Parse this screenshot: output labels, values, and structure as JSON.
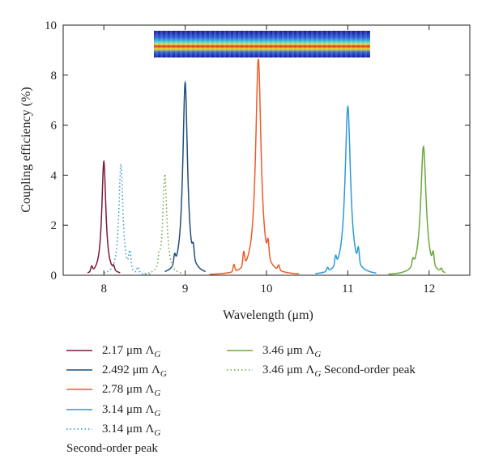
{
  "chart_data": {
    "type": "line",
    "xlabel": "Wavelength (μm)",
    "ylabel": "Coupling efficiency (%)",
    "xlim": [
      7.5,
      12.5
    ],
    "ylim": [
      0,
      10
    ],
    "xticks": [
      8,
      9,
      10,
      11,
      12
    ],
    "yticks": [
      0,
      2,
      4,
      6,
      8,
      10
    ],
    "series": [
      {
        "name": "2.17 μm Λ_G",
        "label_main": "2.17 μm Λ",
        "label_sub": "G",
        "color": "#7b1a3a",
        "style": "solid",
        "peak": 8.0,
        "height": 4.55,
        "width": 0.03,
        "range": [
          7.8,
          8.2
        ],
        "side": [
          [
            7.85,
            0.2,
            0.015
          ],
          [
            8.12,
            0.15,
            0.015
          ]
        ]
      },
      {
        "name": "2.492 μm Λ_G",
        "label_main": "2.492 μm Λ",
        "label_sub": "G",
        "color": "#1f4e79",
        "style": "solid",
        "peak": 9.0,
        "height": 7.7,
        "width": 0.035,
        "range": [
          8.75,
          9.25
        ],
        "side": [
          [
            8.87,
            0.35,
            0.015
          ],
          [
            9.1,
            0.45,
            0.015
          ]
        ]
      },
      {
        "name": "2.78 μm Λ_G",
        "label_main": "2.78 μm Λ",
        "label_sub": "G",
        "color": "#f05a28",
        "style": "solid",
        "peak": 9.9,
        "height": 8.65,
        "width": 0.04,
        "range": [
          9.3,
          10.4
        ],
        "side": [
          [
            9.6,
            0.28,
            0.015
          ],
          [
            9.72,
            0.55,
            0.015
          ],
          [
            10.02,
            0.6,
            0.015
          ],
          [
            10.15,
            0.2,
            0.015
          ]
        ]
      },
      {
        "name": "3.14 μm Λ_G",
        "label_main": "3.14 μm Λ",
        "label_sub": "G",
        "color": "#2c9ad6",
        "style": "solid",
        "peak": 11.0,
        "height": 6.75,
        "width": 0.04,
        "range": [
          10.6,
          11.35
        ],
        "side": [
          [
            10.85,
            0.35,
            0.015
          ],
          [
            11.13,
            0.55,
            0.015
          ],
          [
            10.75,
            0.15,
            0.015
          ]
        ]
      },
      {
        "name": "3.14 μm Λ_G Second-order peak",
        "label_main": "3.14 μm Λ",
        "label_sub": "G",
        "color": "#2c9ad6",
        "style": "dotted",
        "peak": 8.21,
        "height": 4.45,
        "width": 0.03,
        "range": [
          8.0,
          8.6
        ],
        "side": [
          [
            8.32,
            0.7,
            0.02
          ],
          [
            8.42,
            0.25,
            0.02
          ]
        ]
      },
      {
        "name": "3.46 μm Λ_G",
        "label_main": "3.46 μm Λ",
        "label_sub": "G",
        "color": "#6aa83a",
        "style": "solid",
        "peak": 11.93,
        "height": 5.15,
        "width": 0.04,
        "range": [
          11.5,
          12.2
        ],
        "side": [
          [
            11.8,
            0.25,
            0.015
          ],
          [
            12.05,
            0.45,
            0.015
          ],
          [
            12.15,
            0.12,
            0.015
          ]
        ]
      },
      {
        "name": "3.46 μm Λ_G Second-order peak",
        "label_main": "3.46 μm Λ",
        "label_sub": "G",
        "color": "#6aa83a",
        "style": "dotted",
        "peak": 8.75,
        "height": 4.05,
        "width": 0.03,
        "range": [
          8.5,
          8.95
        ],
        "side": [
          [
            8.68,
            0.35,
            0.015
          ]
        ]
      }
    ]
  },
  "legend": {
    "note": "Second-order peak",
    "suffix": "Second-order peak"
  }
}
